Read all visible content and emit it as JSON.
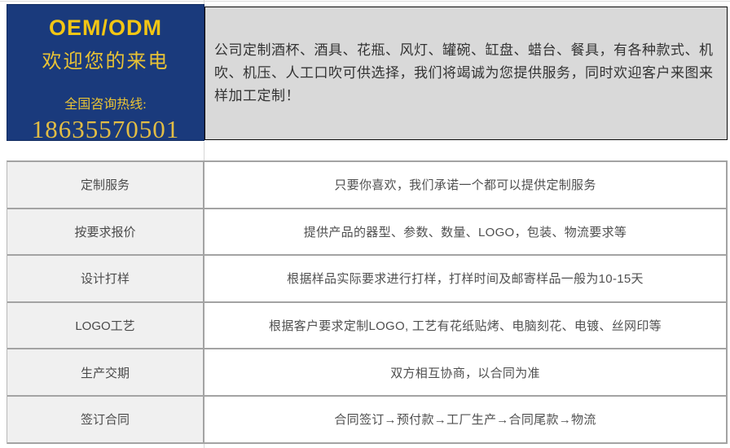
{
  "promo_box": {
    "title": "OEM/ODM",
    "subtitle": "欢迎您的来电",
    "hotline_label": "全国咨询热线:",
    "phone": "18635570501",
    "bg_color": "#1a3a7c",
    "text_color": "#eec62f"
  },
  "description": {
    "text": "公司定制酒杯、酒具、花瓶、风灯、罐碗、缸盘、蜡台、餐具，有各种款式、机吹、机压、人工口吹可供选择，我们将竭诚为您提供服务，同时欢迎客户来图来样加工定制！",
    "bg_color": "#d9d9d9",
    "border_color": "#0a0a0a"
  },
  "table": {
    "border_color": "#a3a3a3",
    "label_bg_color": "#f0f0f0",
    "rows": [
      {
        "label": "定制服务",
        "value": "只要你喜欢，我们承诺一个都可以提供定制服务"
      },
      {
        "label": "按要求报价",
        "value": "提供产品的器型、参数、数量、LOGO，包装、物流要求等"
      },
      {
        "label": "设计打样",
        "value": "根据样品实际要求进行打样，打样时间及邮寄样品一般为10-15天"
      },
      {
        "label": "LOGO工艺",
        "value": "根据客户要求定制LOGO, 工艺有花纸贴烤、电脑刻花、电镀、丝网印等"
      },
      {
        "label": "生产交期",
        "value": "双方相互协商，以合同为准"
      },
      {
        "label": "签订合同",
        "value": "合同签订→预付款→工厂生产→合同尾款→物流"
      }
    ]
  }
}
